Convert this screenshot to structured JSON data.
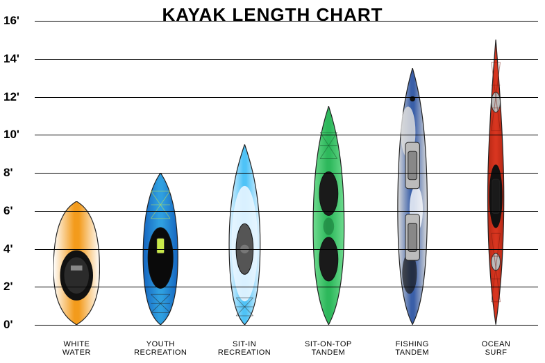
{
  "title": "KAYAK LENGTH CHART",
  "title_fontsize": 26,
  "title_color": "#000000",
  "background_color": "#ffffff",
  "grid_color": "#000000",
  "yaxis": {
    "min": 0,
    "max": 16,
    "tick_step": 2,
    "label_fontsize": 17,
    "label_color": "#000000",
    "labels": [
      "0'",
      "2'",
      "4'",
      "6'",
      "8'",
      "10'",
      "12'",
      "14'",
      "16'"
    ]
  },
  "xaxis": {
    "label_fontsize": 11,
    "label_color": "#000000"
  },
  "kayaks": [
    {
      "name": "WHITE\nWATER",
      "length_ft": 6.5,
      "width_rel": 0.55,
      "body_color": "#f39b1c",
      "body_color_2": "#ffffff",
      "accent_color": "#f6d55c",
      "seat_color": "#2b2b2b",
      "shape": "whitewater"
    },
    {
      "name": "YOUTH\nRECREATION",
      "length_ft": 8.0,
      "width_rel": 0.45,
      "body_color": "#2f9fe0",
      "body_color_2": "#1565c0",
      "accent_color": "#c9e84a",
      "seat_color": "#1a1a1a",
      "shape": "recreation"
    },
    {
      "name": "SIT-IN\nRECREATION",
      "length_ft": 9.5,
      "width_rel": 0.42,
      "body_color": "#4fc3f7",
      "body_color_2": "#e8f5ff",
      "accent_color": "#0288d1",
      "seat_color": "#555555",
      "shape": "sitintop"
    },
    {
      "name": "SIT-ON-TOP\nTANDEM",
      "length_ft": 11.5,
      "width_rel": 0.42,
      "body_color": "#2eb85c",
      "body_color_2": "#6edc8f",
      "accent_color": "#1a7a3a",
      "seat_color": "#1a1a1a",
      "shape": "tandem"
    },
    {
      "name": "FISHING\nTANDEM",
      "length_ft": 13.5,
      "width_rel": 0.4,
      "body_color": "#3a5fa8",
      "body_color_2": "#dcdcdc",
      "accent_color": "#1a1a1a",
      "seat_color": "#bcbcbc",
      "shape": "fishing"
    },
    {
      "name": "OCEAN\nSURF",
      "length_ft": 15.0,
      "width_rel": 0.3,
      "body_color": "#d8351f",
      "body_color_2": "#b52815",
      "accent_color": "#333333",
      "seat_color": "#1a1a1a",
      "shape": "touring"
    }
  ]
}
